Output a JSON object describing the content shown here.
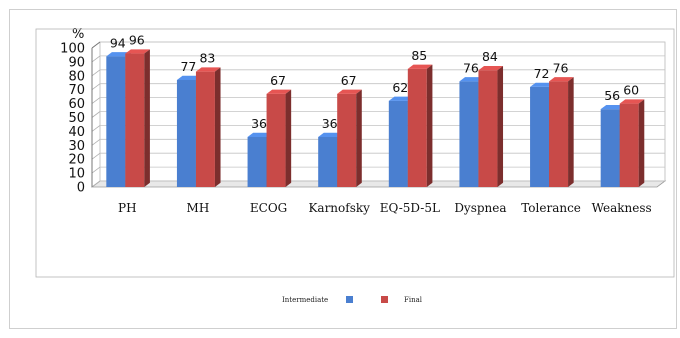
{
  "chart_data": {
    "type": "bar",
    "ylabel": "%",
    "ylim": [
      0,
      100
    ],
    "yticks": [
      0,
      10,
      20,
      30,
      40,
      50,
      60,
      70,
      80,
      90,
      100
    ],
    "categories": [
      "PH",
      "MH",
      "ECOG",
      "Karnofsky",
      "EQ-5D-5L",
      "Dyspnea",
      "Tolerance",
      "Weakness"
    ],
    "series": [
      {
        "name": "Intermediate",
        "values": [
          94,
          77,
          36,
          36,
          62,
          76,
          72,
          56
        ],
        "color": "#4a7fd0"
      },
      {
        "name": "Final",
        "values": [
          96,
          83,
          67,
          67,
          85,
          84,
          76,
          60
        ],
        "color": "#c84a48"
      }
    ],
    "data_labels": true,
    "grid": true,
    "legend": "bottom"
  }
}
